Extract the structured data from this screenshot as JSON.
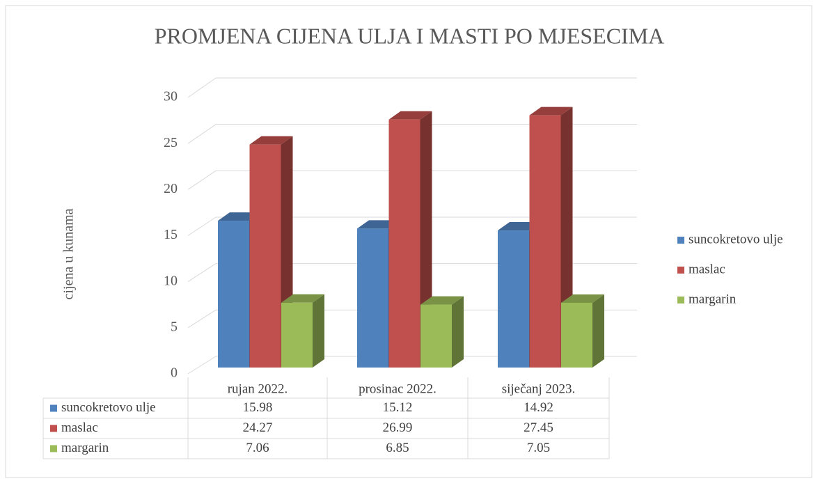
{
  "chart_data": {
    "type": "bar3d",
    "title": "PROMJENA CIJENA ULJA I MASTI PO MJESECIMA",
    "y_label": "cijena u kunama",
    "categories": [
      "rujan 2022.",
      "prosinac 2022.",
      "siječanj 2023."
    ],
    "series": [
      {
        "name": "suncokretovo ulje",
        "color": "#4f81bd",
        "values": [
          15.98,
          15.12,
          14.92
        ]
      },
      {
        "name": "maslac",
        "color": "#c0504d",
        "values": [
          24.27,
          26.99,
          27.45
        ]
      },
      {
        "name": "margarin",
        "color": "#9bbb59",
        "values": [
          7.06,
          6.85,
          7.05
        ]
      }
    ],
    "ylim": [
      0,
      30
    ],
    "yticks": [
      0,
      5,
      10,
      15,
      20,
      25,
      30
    ],
    "grid": true,
    "legend": "right",
    "data_table": true
  }
}
